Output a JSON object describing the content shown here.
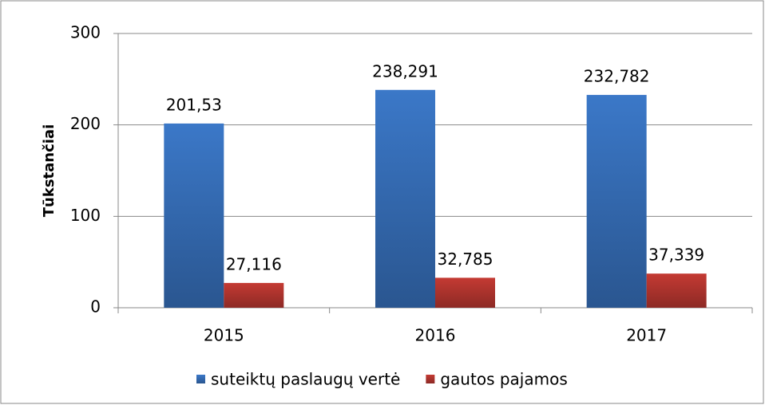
{
  "chart_data": {
    "type": "bar",
    "y_label": "Tūkstančiai",
    "categories": [
      "2015",
      "2016",
      "2017"
    ],
    "series": [
      {
        "name": "suteiktų paslaugų vertė",
        "color": "#3b78c8",
        "values": [
          201.53,
          238.291,
          232.782
        ],
        "value_labels": [
          "201,53",
          "238,291",
          "232,782"
        ]
      },
      {
        "name": "gautos pajamos",
        "color": "#c43a33",
        "values": [
          27.116,
          32.785,
          37.339
        ],
        "value_labels": [
          "27,116",
          "32,785",
          "37,339"
        ]
      }
    ],
    "ylim": [
      0,
      300
    ],
    "yticks": [
      0,
      100,
      200,
      300
    ],
    "grid": true,
    "legend": "bottom"
  }
}
